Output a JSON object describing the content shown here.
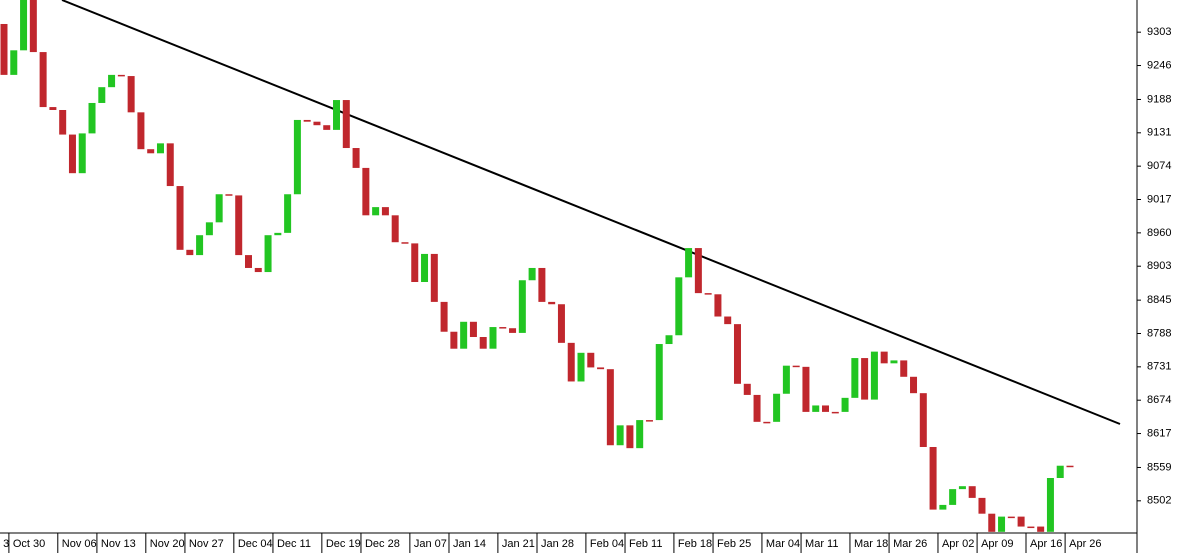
{
  "chart_data": {
    "type": "candlestick",
    "categories": [
      "3",
      "Oct 30",
      null,
      null,
      null,
      null,
      "Nov 06",
      null,
      null,
      null,
      "Nov 13",
      null,
      null,
      null,
      null,
      "Nov 20",
      null,
      null,
      null,
      "Nov 27",
      null,
      null,
      null,
      null,
      "Dec 04",
      null,
      null,
      null,
      "Dec 11",
      null,
      null,
      null,
      null,
      "Dec 19",
      null,
      null,
      null,
      "Dec 28",
      null,
      null,
      null,
      null,
      "Jan 07",
      null,
      null,
      null,
      "Jan 14",
      null,
      null,
      null,
      null,
      "Jan 21",
      null,
      null,
      null,
      "Jan 28",
      null,
      null,
      null,
      null,
      "Feb 04",
      null,
      null,
      null,
      "Feb 11",
      null,
      null,
      null,
      null,
      "Feb 18",
      null,
      null,
      null,
      "Feb 25",
      null,
      null,
      null,
      null,
      "Mar 04",
      null,
      null,
      null,
      "Mar 11",
      null,
      null,
      null,
      null,
      "Mar 18",
      null,
      null,
      null,
      "Mar 26",
      null,
      null,
      null,
      null,
      "Apr 02",
      null,
      null,
      null,
      "Apr 09",
      null,
      null,
      null,
      null,
      "Apr 16",
      null,
      null,
      null,
      "Apr 26"
    ],
    "open": [
      9317,
      9230,
      9272,
      9358,
      9269,
      9175,
      9170,
      9128,
      9062,
      9130,
      9182,
      9209,
      9230,
      9228,
      9166,
      9103,
      9096,
      9113,
      9040,
      8931,
      8922,
      8956,
      8978,
      9026,
      9024,
      8922,
      8900,
      8893,
      8956,
      8960,
      9026,
      9153,
      9150,
      9144,
      9136,
      9187,
      9105,
      9071,
      8990,
      9004,
      8990,
      8944,
      8942,
      8876,
      8924,
      8842,
      8791,
      8762,
      8808,
      8782,
      8762,
      8799,
      8797,
      8789,
      8879,
      8900,
      8842,
      8838,
      8772,
      8706,
      8755,
      8730,
      8727,
      8597,
      8631,
      8592,
      8640,
      8640,
      8770,
      8785,
      8884,
      8934,
      8857,
      8855,
      8817,
      8804,
      8702,
      8683,
      8637,
      8637,
      8685,
      8733,
      8731,
      8654,
      8665,
      8654,
      8654,
      8678,
      8746,
      8675,
      8757,
      8737,
      8742,
      8714,
      8686,
      8594,
      8487,
      8495,
      8522,
      8527,
      8507,
      8480,
      8449,
      8475,
      8475,
      8458,
      8458,
      8449,
      8541,
      8562
    ],
    "close": [
      9230,
      9272,
      9358,
      9269,
      9175,
      9170,
      9128,
      9062,
      9130,
      9182,
      9209,
      9230,
      9228,
      9166,
      9103,
      9096,
      9113,
      9040,
      8931,
      8922,
      8956,
      8978,
      9026,
      9024,
      8922,
      8900,
      8893,
      8956,
      8960,
      9026,
      9153,
      9150,
      9144,
      9136,
      9187,
      9105,
      9071,
      8990,
      9004,
      8990,
      8944,
      8942,
      8876,
      8924,
      8842,
      8791,
      8762,
      8808,
      8782,
      8762,
      8799,
      8797,
      8789,
      8879,
      8900,
      8842,
      8838,
      8772,
      8706,
      8755,
      8730,
      8727,
      8597,
      8631,
      8592,
      8640,
      8638,
      8770,
      8785,
      8884,
      8934,
      8857,
      8855,
      8817,
      8804,
      8702,
      8683,
      8637,
      8635,
      8685,
      8733,
      8731,
      8654,
      8665,
      8654,
      8652,
      8678,
      8746,
      8675,
      8757,
      8737,
      8742,
      8714,
      8686,
      8594,
      8487,
      8495,
      8522,
      8527,
      8507,
      8480,
      8449,
      8475,
      8473,
      8458,
      8456,
      8449,
      8541,
      8562,
      8560
    ],
    "up_color": "#22c522",
    "down_color": "#c0272d",
    "ylim": [
      8447,
      9358
    ],
    "yticks": [
      8502,
      8559,
      8617,
      8674,
      8731,
      8788,
      8845,
      8903,
      8960,
      9017,
      9074,
      9131,
      9188,
      9246,
      9303
    ]
  }
}
